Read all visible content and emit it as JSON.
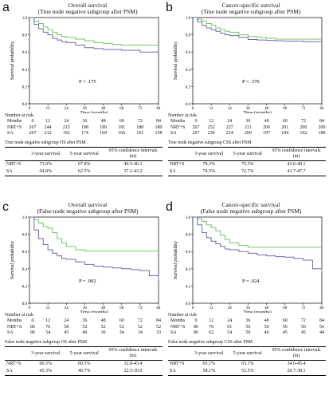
{
  "colors": {
    "nrt": "#6ecb63",
    "sa": "#6b6fb3",
    "frame": "#000000"
  },
  "panels": [
    {
      "label": "a",
      "title1": "Overall survival",
      "title2": "(True node negative subgroup after PSM)",
      "ylabel": "Survival probability",
      "xlabel": "Time (months)",
      "pvalue": "P = .175",
      "ticks_x": [
        "0",
        "12",
        "24",
        "36",
        "48",
        "60",
        "72",
        "84"
      ],
      "ticks_y": [
        "0.0",
        "0.2",
        "0.4",
        "0.6",
        "0.8",
        "1.0"
      ],
      "risk_header": "Number at risk",
      "risk_rows": [
        {
          "label": "Months",
          "values": [
            "0",
            "12",
            "24",
            "36",
            "48",
            "60",
            "72",
            "84"
          ]
        },
        {
          "label": "NRT+S",
          "values": [
            "267",
            "244",
            "215",
            "198",
            "189",
            "181",
            "180",
            "180"
          ]
        },
        {
          "label": "SA",
          "values": [
            "267",
            "212",
            "192",
            "174",
            "169",
            "166",
            "161",
            "158"
          ]
        }
      ],
      "table_caption": "True node negative subgroup OS after PSM",
      "table_head": [
        "",
        "3-year survival",
        "5-year survival",
        "95% confidence intervals (m)"
      ],
      "table_rows": [
        [
          "NRT+S",
          "73.0%",
          "67.8%",
          "40.5-46.1"
        ],
        [
          "SA",
          "64.8%",
          "62.5%",
          "37.2-43.2"
        ]
      ]
    },
    {
      "label": "b",
      "title1": "Cancer-specific survival",
      "title2": "(True node negative subgroup after PSM)",
      "ylabel": "Survival probability",
      "xlabel": "Time (months)",
      "pvalue": "P = .370",
      "ticks_x": [
        "0",
        "12",
        "24",
        "36",
        "48",
        "60",
        "72",
        "84"
      ],
      "ticks_y": [
        "0.0",
        "0.2",
        "0.4",
        "0.6",
        "0.8",
        "1.0"
      ],
      "risk_header": "Number at risk",
      "risk_rows": [
        {
          "label": "Months",
          "values": [
            "0",
            "12",
            "24",
            "36",
            "48",
            "60",
            "72",
            "84"
          ]
        },
        {
          "label": "NRT+S",
          "values": [
            "267",
            "252",
            "227",
            "211",
            "206",
            "201",
            "200",
            "200"
          ]
        },
        {
          "label": "SA",
          "values": [
            "267",
            "230",
            "214",
            "200",
            "197",
            "194",
            "192",
            "189"
          ]
        }
      ],
      "table_caption": "True node negative subgroup CSS after PSM",
      "table_head": [
        "",
        "3-year survival",
        "5-year survival",
        "95% confidence intervals (m)"
      ],
      "table_rows": [
        [
          "NRT+S",
          "78.3%",
          "75.3%",
          "43.6-49.1"
        ],
        [
          "SA",
          "74.5%",
          "72.7%",
          "41.7-47.7"
        ]
      ]
    },
    {
      "label": "c",
      "title1": "Overall survival",
      "title2": "(False node negative subgroup after PSM)",
      "ylabel": "Survival probability",
      "xlabel": "Time (months)",
      "pvalue": "P = .002",
      "ticks_x": [
        "0",
        "12",
        "24",
        "36",
        "48",
        "60",
        "72",
        "84"
      ],
      "ticks_y": [
        "0.0",
        "0.2",
        "0.4",
        "0.6",
        "0.8",
        "1.0"
      ],
      "risk_header": "Number at risk",
      "risk_rows": [
        {
          "label": "Months",
          "values": [
            "0",
            "12",
            "24",
            "36",
            "48",
            "60",
            "72",
            "84"
          ]
        },
        {
          "label": "NRT+S",
          "values": [
            "86",
            "76",
            "58",
            "52",
            "52",
            "52",
            "52",
            "52"
          ]
        },
        {
          "label": "SA",
          "values": [
            "86",
            "54",
            "45",
            "40",
            "36",
            "34",
            "34",
            "33"
          ]
        }
      ],
      "table_caption": "False node negative subgroup OS after PSM",
      "table_head": [
        "",
        "3-year survival",
        "5-year survival",
        "95% confidence intervals (m)"
      ],
      "table_rows": [
        [
          "NRT+S",
          "60.5%",
          "60.5%",
          "32.8-43.4"
        ],
        [
          "SA",
          "45.3%",
          "40.7%",
          "22.5-30.0"
        ]
      ]
    },
    {
      "label": "d",
      "title1": "Cancer-specific survival",
      "title2": "(False node negative subgroup after PSM)",
      "ylabel": "Survival probability",
      "xlabel": "Time (months)",
      "pvalue": "P = .024",
      "ticks_x": [
        "0",
        "12",
        "24",
        "36",
        "48",
        "60",
        "72",
        "84"
      ],
      "ticks_y": [
        "0.0",
        "0.2",
        "0.4",
        "0.6",
        "0.8",
        "1.0"
      ],
      "risk_header": "Number at risk",
      "risk_rows": [
        {
          "label": "Months",
          "values": [
            "0",
            "12",
            "24",
            "36",
            "48",
            "60",
            "72",
            "84"
          ]
        },
        {
          "label": "NRT+S",
          "values": [
            "86",
            "76",
            "61",
            "56",
            "56",
            "56",
            "56",
            "56"
          ]
        },
        {
          "label": "SA",
          "values": [
            "86",
            "62",
            "54",
            "50",
            "46",
            "45",
            "45",
            "44"
          ]
        }
      ],
      "table_caption": "False node negative subgroup CSS after PSM",
      "table_head": [
        "",
        "3-year survival",
        "5-year survival",
        "95% confidence intervals (m)"
      ],
      "table_rows": [
        [
          "NRT+S",
          "65.1%",
          "65.1%",
          "34.6-45.4"
        ],
        [
          "SA",
          "58.1%",
          "53.5%",
          "26.7-38.1"
        ]
      ]
    }
  ],
  "chart_data": [
    {
      "type": "line",
      "xlim": [
        0,
        84
      ],
      "ylim": [
        0,
        1
      ],
      "series": [
        {
          "name": "NRT+S",
          "x": [
            0,
            3,
            6,
            9,
            12,
            15,
            18,
            21,
            24,
            30,
            36,
            42,
            48,
            54,
            60,
            72,
            84
          ],
          "y": [
            1.0,
            0.96,
            0.93,
            0.89,
            0.86,
            0.83,
            0.8,
            0.78,
            0.77,
            0.75,
            0.73,
            0.71,
            0.7,
            0.69,
            0.68,
            0.68,
            0.68
          ]
        },
        {
          "name": "SA",
          "x": [
            0,
            3,
            6,
            9,
            12,
            15,
            18,
            21,
            24,
            30,
            36,
            42,
            48,
            54,
            60,
            72,
            84
          ],
          "y": [
            1.0,
            0.92,
            0.87,
            0.83,
            0.8,
            0.76,
            0.74,
            0.72,
            0.71,
            0.68,
            0.65,
            0.64,
            0.63,
            0.63,
            0.62,
            0.6,
            0.59
          ]
        }
      ]
    },
    {
      "type": "line",
      "xlim": [
        0,
        84
      ],
      "ylim": [
        0,
        1
      ],
      "series": [
        {
          "name": "NRT+S",
          "x": [
            0,
            3,
            6,
            9,
            12,
            15,
            18,
            21,
            24,
            30,
            36,
            42,
            48,
            54,
            60,
            72,
            84
          ],
          "y": [
            1.0,
            0.98,
            0.96,
            0.93,
            0.91,
            0.88,
            0.86,
            0.84,
            0.83,
            0.8,
            0.78,
            0.77,
            0.76,
            0.75,
            0.75,
            0.75,
            0.75
          ]
        },
        {
          "name": "SA",
          "x": [
            0,
            3,
            6,
            9,
            12,
            15,
            18,
            21,
            24,
            30,
            36,
            42,
            48,
            54,
            60,
            72,
            84
          ],
          "y": [
            1.0,
            0.95,
            0.91,
            0.88,
            0.86,
            0.84,
            0.82,
            0.8,
            0.79,
            0.77,
            0.745,
            0.74,
            0.735,
            0.73,
            0.727,
            0.72,
            0.71
          ]
        }
      ]
    },
    {
      "type": "line",
      "xlim": [
        0,
        84
      ],
      "ylim": [
        0,
        1
      ],
      "series": [
        {
          "name": "NRT+S",
          "x": [
            0,
            3,
            6,
            9,
            12,
            15,
            18,
            21,
            24,
            30,
            36,
            42,
            48,
            60,
            72,
            84
          ],
          "y": [
            1.0,
            0.97,
            0.93,
            0.89,
            0.87,
            0.82,
            0.75,
            0.7,
            0.66,
            0.62,
            0.605,
            0.605,
            0.605,
            0.605,
            0.605,
            0.605
          ]
        },
        {
          "name": "SA",
          "x": [
            0,
            3,
            6,
            9,
            12,
            15,
            18,
            21,
            24,
            30,
            36,
            42,
            48,
            54,
            60,
            66,
            72,
            78,
            84
          ],
          "y": [
            1.0,
            0.85,
            0.75,
            0.68,
            0.62,
            0.58,
            0.55,
            0.52,
            0.51,
            0.48,
            0.45,
            0.43,
            0.42,
            0.41,
            0.4,
            0.39,
            0.38,
            0.32,
            0.26
          ]
        }
      ]
    },
    {
      "type": "line",
      "xlim": [
        0,
        84
      ],
      "ylim": [
        0,
        1
      ],
      "series": [
        {
          "name": "NRT+S",
          "x": [
            0,
            3,
            6,
            9,
            12,
            15,
            18,
            21,
            24,
            30,
            36,
            42,
            48,
            60,
            72,
            84
          ],
          "y": [
            1.0,
            0.98,
            0.95,
            0.91,
            0.88,
            0.84,
            0.79,
            0.74,
            0.7,
            0.67,
            0.651,
            0.651,
            0.651,
            0.651,
            0.651,
            0.651
          ]
        },
        {
          "name": "SA",
          "x": [
            0,
            3,
            6,
            9,
            12,
            15,
            18,
            21,
            24,
            30,
            36,
            42,
            48,
            54,
            60,
            66,
            72,
            78,
            84
          ],
          "y": [
            1.0,
            0.91,
            0.82,
            0.76,
            0.72,
            0.69,
            0.66,
            0.63,
            0.62,
            0.6,
            0.58,
            0.56,
            0.55,
            0.54,
            0.535,
            0.52,
            0.5,
            0.4,
            0.36
          ]
        }
      ]
    }
  ]
}
